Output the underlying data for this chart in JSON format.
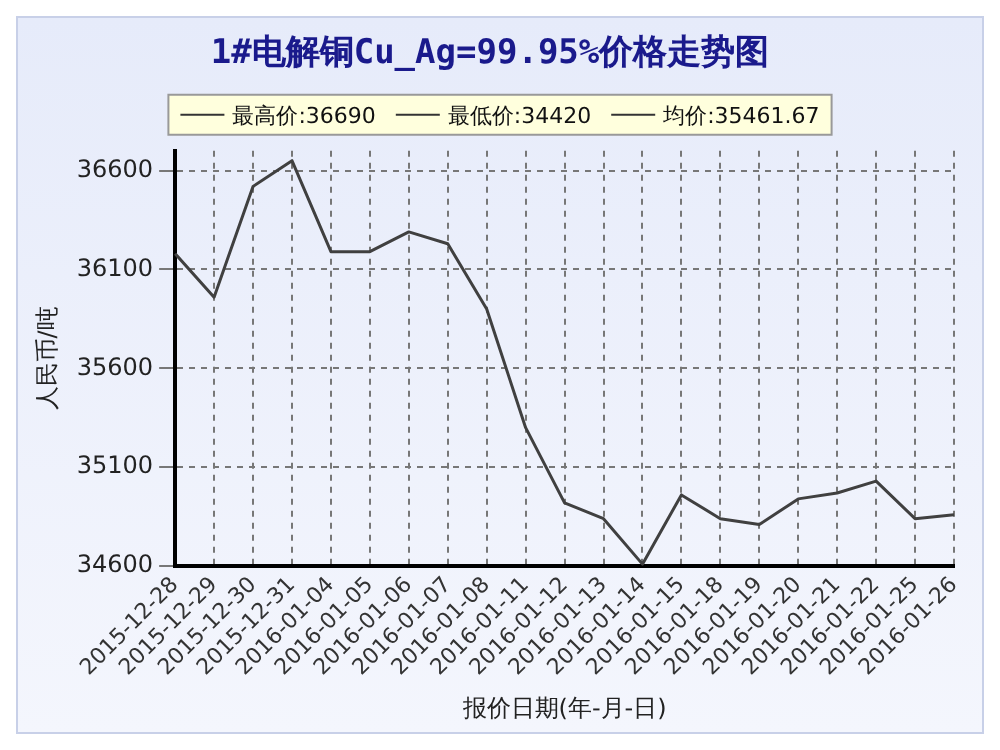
{
  "chart_data": {
    "type": "line",
    "title": "1#电解铜Cu_Ag=99.95%价格走势图",
    "xlabel": "报价日期(年-月-日)",
    "ylabel": "人民币/吨",
    "categories": [
      "2015-12-28",
      "2015-12-29",
      "2015-12-30",
      "2015-12-31",
      "2016-01-04",
      "2016-01-05",
      "2016-01-06",
      "2016-01-07",
      "2016-01-08",
      "2016-01-11",
      "2016-01-12",
      "2016-01-13",
      "2016-01-14",
      "2016-01-15",
      "2016-01-18",
      "2016-01-19",
      "2016-01-20",
      "2016-01-21",
      "2016-01-22",
      "2016-01-25",
      "2016-01-26"
    ],
    "series": [
      {
        "color": "#404040",
        "values": [
          36180,
          35960,
          36520,
          36650,
          36190,
          36190,
          36290,
          36230,
          35900,
          35300,
          34920,
          34840,
          34610,
          34960,
          34840,
          34810,
          34940,
          34970,
          35030,
          34840,
          34860
        ]
      }
    ],
    "annotations": [
      "最高价:36690",
      "最低价:34420",
      "均价:35461.67"
    ],
    "ylim": [
      34600,
      36700
    ],
    "yticks": [
      34600,
      35100,
      35600,
      36100,
      36600
    ],
    "grid": true,
    "marker": "none",
    "line_style": "solid"
  }
}
